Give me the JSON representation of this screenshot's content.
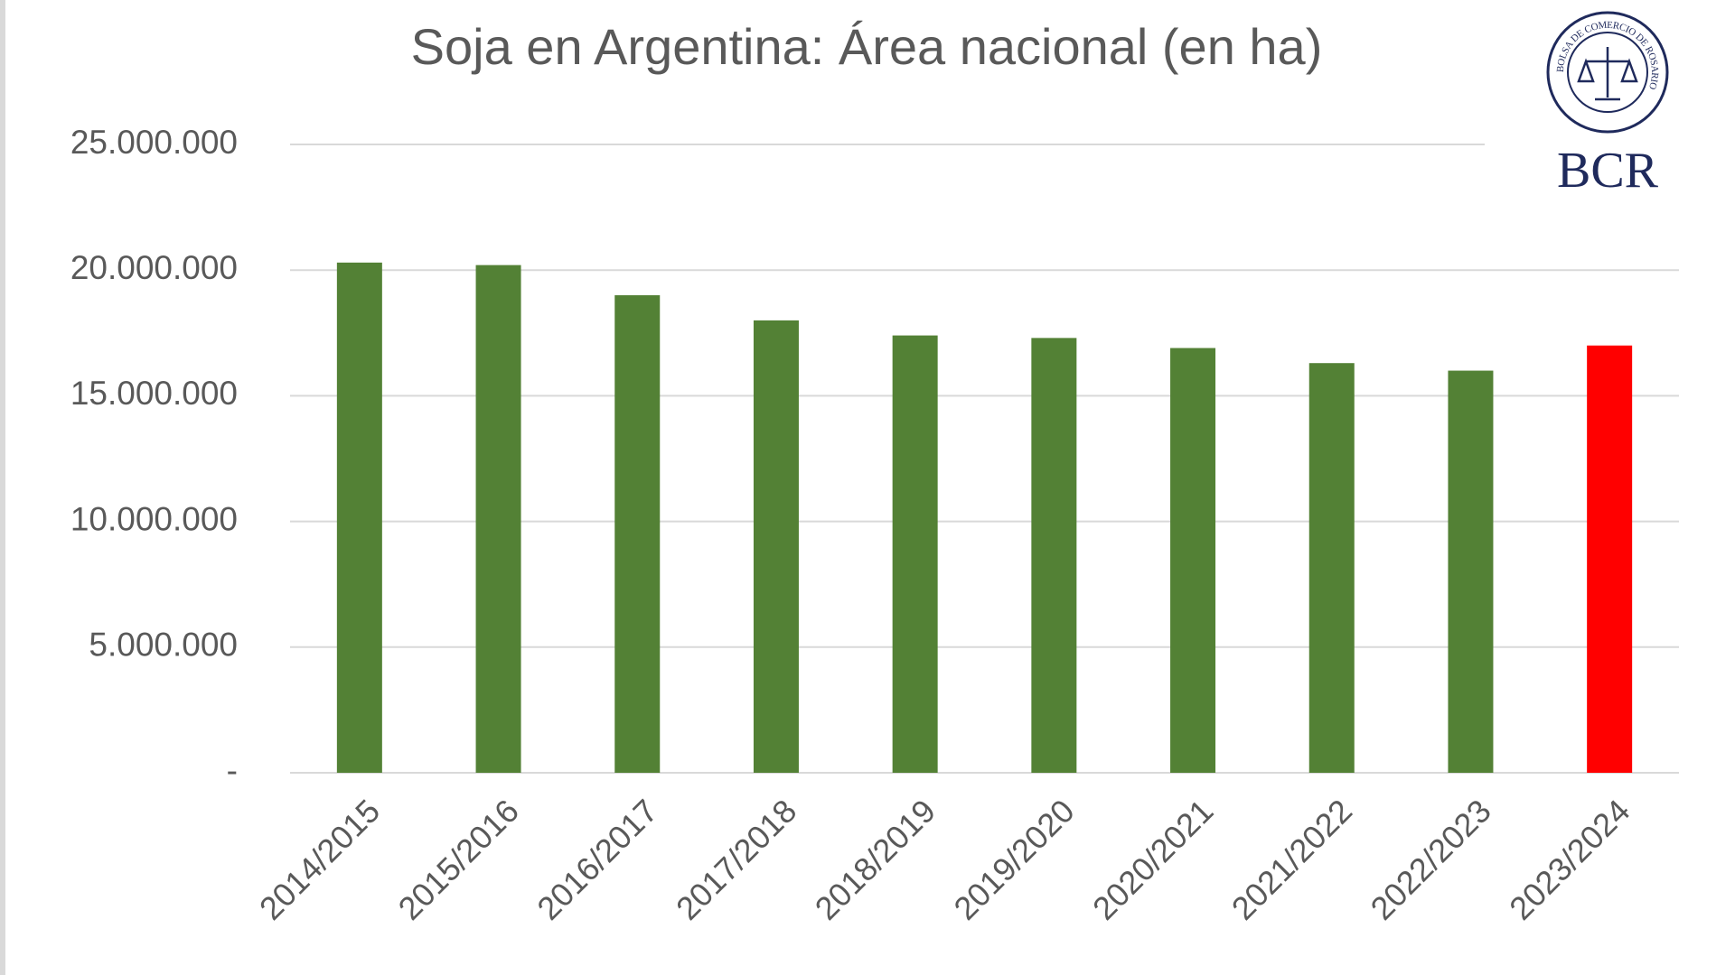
{
  "chart_data": {
    "type": "bar",
    "title": "Soja en Argentina: Área nacional (en ha)",
    "categories": [
      "2014/2015",
      "2015/2016",
      "2016/2017",
      "2017/2018",
      "2018/2019",
      "2019/2020",
      "2020/2021",
      "2021/2022",
      "2022/2023",
      "2023/2024"
    ],
    "values": [
      20300000,
      20200000,
      19000000,
      18000000,
      17400000,
      17300000,
      16900000,
      16300000,
      16000000,
      17000000
    ],
    "colors": [
      "#538135",
      "#538135",
      "#538135",
      "#538135",
      "#538135",
      "#538135",
      "#538135",
      "#538135",
      "#538135",
      "#ff0000"
    ],
    "ylim": [
      0,
      25000000
    ],
    "yticks": [
      {
        "value": 0,
        "label": "-"
      },
      {
        "value": 5000000,
        "label": "5.000.000"
      },
      {
        "value": 10000000,
        "label": "10.000.000"
      },
      {
        "value": 15000000,
        "label": "15.000.000"
      },
      {
        "value": 20000000,
        "label": "20.000.000"
      },
      {
        "value": 25000000,
        "label": "25.000.000"
      }
    ],
    "grid": true
  },
  "logo": {
    "text": "BCR",
    "ring_text": "BOLSA DE COMERCIO DE ROSARIO"
  }
}
